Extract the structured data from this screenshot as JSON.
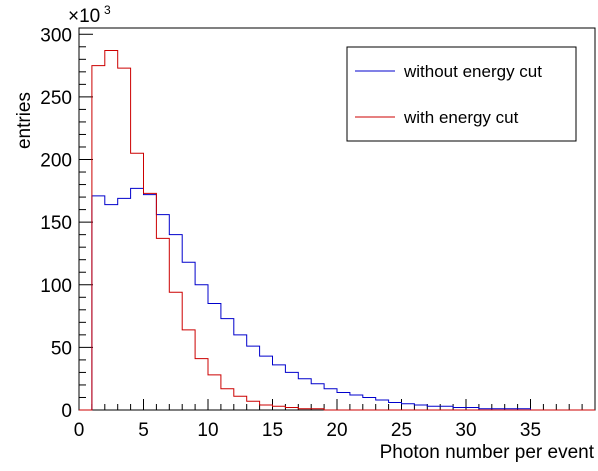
{
  "chart_data": {
    "type": "histogram",
    "xlabel": "Photon number per event",
    "ylabel": "entries",
    "y_multiplier": {
      "base": "×10",
      "exponent": "3"
    },
    "xlim": [
      0,
      40
    ],
    "ylim": [
      0,
      305
    ],
    "bin_width": 1,
    "x_ticks": [
      0,
      5,
      10,
      15,
      20,
      25,
      30,
      35
    ],
    "y_ticks": [
      0,
      50,
      100,
      150,
      200,
      250,
      300
    ],
    "grid": false,
    "legend": {
      "position": "top-right"
    },
    "series": [
      {
        "name": "without energy cut",
        "color": "#0000cc",
        "values": [
          0,
          171,
          164,
          169,
          177,
          172,
          156,
          140,
          118,
          100,
          85,
          73,
          60,
          51,
          43,
          36,
          30,
          25,
          21,
          17,
          14,
          12,
          10,
          8,
          6,
          5,
          4,
          3,
          3,
          2,
          2,
          1,
          1,
          1,
          1,
          0,
          0,
          0,
          0,
          0
        ]
      },
      {
        "name": "with energy cut",
        "color": "#cc0000",
        "values": [
          0,
          275,
          287,
          273,
          205,
          173,
          137,
          94,
          64,
          41,
          28,
          17,
          11,
          7,
          4,
          3,
          2,
          1,
          1,
          0,
          0,
          0,
          0,
          0,
          0,
          0,
          0,
          0,
          0,
          0,
          0,
          0,
          0,
          0,
          0,
          0,
          0,
          0,
          0,
          0
        ]
      }
    ]
  }
}
